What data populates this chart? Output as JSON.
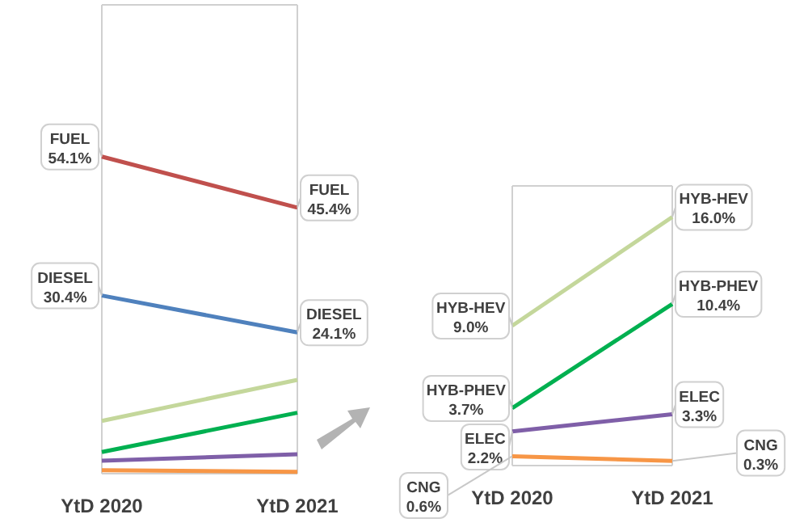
{
  "chart_data": [
    {
      "type": "line",
      "categories": [
        "YtD 2020",
        "YtD 2021"
      ],
      "ylim": [
        0,
        80
      ],
      "tick_labels": "x",
      "legend": false,
      "marker": "none",
      "line_style": "solid",
      "series": [
        {
          "name": "FUEL",
          "color": "#c0504d",
          "values": [
            54.1,
            45.4
          ],
          "value_labels": [
            "54.1%",
            "45.4%"
          ]
        },
        {
          "name": "DIESEL",
          "color": "#4f81bd",
          "values": [
            30.4,
            24.1
          ],
          "value_labels": [
            "30.4%",
            "24.1%"
          ]
        },
        {
          "color": "#c4d79b",
          "values": [
            9.0,
            16.0
          ]
        },
        {
          "color": "#00b050",
          "values": [
            3.7,
            10.4
          ]
        },
        {
          "color": "#7f5fa8",
          "values": [
            2.2,
            3.3
          ]
        },
        {
          "color": "#f79646",
          "values": [
            0.6,
            0.3
          ]
        }
      ]
    },
    {
      "type": "line",
      "categories": [
        "YtD 2020",
        "YtD 2021"
      ],
      "ylim": [
        0,
        18
      ],
      "tick_labels": "x",
      "legend": false,
      "marker": "none",
      "line_style": "solid",
      "series": [
        {
          "name": "HYB-HEV",
          "color": "#c4d79b",
          "values": [
            9.0,
            16.0
          ],
          "value_labels": [
            "9.0%",
            "16.0%"
          ]
        },
        {
          "name": "HYB-PHEV",
          "color": "#00b050",
          "values": [
            3.7,
            10.4
          ],
          "value_labels": [
            "3.7%",
            "10.4%"
          ]
        },
        {
          "name": "ELEC",
          "color": "#7f5fa8",
          "values": [
            2.2,
            3.3
          ],
          "value_labels": [
            "2.2%",
            "3.3%"
          ]
        },
        {
          "name": "CNG",
          "color": "#f79646",
          "values": [
            0.6,
            0.3
          ],
          "value_labels": [
            "0.6%",
            "0.3%"
          ]
        }
      ]
    }
  ]
}
